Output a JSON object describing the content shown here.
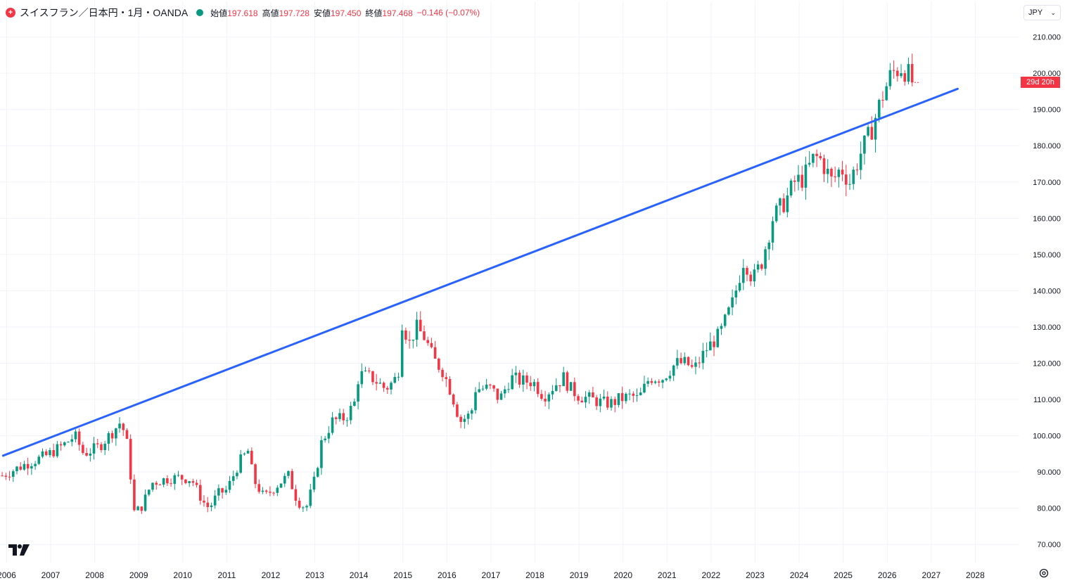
{
  "header": {
    "title": "スイスフラン／日本円・1月・OANDA",
    "open_label": "始値",
    "open_value": "197.618",
    "high_label": "高値",
    "high_value": "197.728",
    "low_label": "安値",
    "low_value": "197.450",
    "close_label": "終値",
    "close_value": "197.468",
    "change": "−0.146 (−0.07%)"
  },
  "currency": {
    "label": "JPY"
  },
  "countdown": {
    "label": "29d 20h"
  },
  "icons": {
    "symbol": "cross-circle-icon",
    "status": "market-status-icon",
    "dropdown": "chevron-down-icon",
    "logo": "tradingview-logo-icon",
    "settings": "gear-icon"
  },
  "colors": {
    "up": "#089981",
    "down": "#f23645",
    "trendline": "#2962ff",
    "grid": "#f0f3fa"
  },
  "chart_data": {
    "type": "candlestick",
    "x_tick_labels": [
      "2006",
      "2007",
      "2008",
      "2009",
      "2010",
      "2011",
      "2012",
      "2013",
      "2014",
      "2015",
      "2016",
      "2017",
      "2018",
      "2019",
      "2020",
      "2021",
      "2022",
      "2023",
      "2024",
      "2025",
      "2026",
      "2027",
      "2028"
    ],
    "y_tick_labels": [
      "210.000",
      "200.000",
      "190.000",
      "180.000",
      "170.000",
      "160.000",
      "150.000",
      "140.000",
      "130.000",
      "120.000",
      "110.000",
      "100.000",
      "90.000",
      "80.000",
      "70.000"
    ],
    "ylim": [
      65,
      214
    ],
    "xlim": [
      2005.85,
      2029.0
    ],
    "grid": true,
    "anchors": [
      [
        2005.9,
        89
      ],
      [
        2006.4,
        92
      ],
      [
        2006.9,
        94.5
      ],
      [
        2007.3,
        97.5
      ],
      [
        2007.55,
        100
      ],
      [
        2007.75,
        95
      ],
      [
        2008.1,
        97
      ],
      [
        2008.4,
        101
      ],
      [
        2008.6,
        104
      ],
      [
        2008.75,
        97
      ],
      [
        2008.9,
        79
      ],
      [
        2009.05,
        80
      ],
      [
        2009.3,
        87
      ],
      [
        2009.6,
        88
      ],
      [
        2009.9,
        88.5
      ],
      [
        2010.2,
        88
      ],
      [
        2010.45,
        82
      ],
      [
        2010.6,
        80
      ],
      [
        2010.8,
        84
      ],
      [
        2011.0,
        85
      ],
      [
        2011.3,
        93
      ],
      [
        2011.5,
        96
      ],
      [
        2011.6,
        88
      ],
      [
        2011.85,
        83
      ],
      [
        2012.2,
        87
      ],
      [
        2012.4,
        89
      ],
      [
        2012.6,
        82
      ],
      [
        2012.8,
        80
      ],
      [
        2013.0,
        88
      ],
      [
        2013.15,
        98
      ],
      [
        2013.4,
        104
      ],
      [
        2013.7,
        105
      ],
      [
        2013.9,
        109
      ],
      [
        2014.0,
        117
      ],
      [
        2014.3,
        116
      ],
      [
        2014.6,
        113
      ],
      [
        2014.8,
        115
      ],
      [
        2014.95,
        120
      ],
      [
        2015.0,
        137
      ],
      [
        2015.1,
        124
      ],
      [
        2015.3,
        130
      ],
      [
        2015.5,
        127
      ],
      [
        2015.7,
        121
      ],
      [
        2015.9,
        118
      ],
      [
        2016.1,
        112
      ],
      [
        2016.3,
        104
      ],
      [
        2016.55,
        106
      ],
      [
        2016.65,
        113
      ],
      [
        2017.0,
        113
      ],
      [
        2017.2,
        110
      ],
      [
        2017.45,
        116
      ],
      [
        2017.7,
        115
      ],
      [
        2017.95,
        115
      ],
      [
        2018.2,
        111
      ],
      [
        2018.45,
        114
      ],
      [
        2018.65,
        116
      ],
      [
        2018.8,
        113
      ],
      [
        2019.0,
        111
      ],
      [
        2019.3,
        110
      ],
      [
        2019.55,
        109
      ],
      [
        2019.75,
        109
      ],
      [
        2019.9,
        110
      ],
      [
        2020.2,
        111
      ],
      [
        2020.35,
        110
      ],
      [
        2020.6,
        116
      ],
      [
        2020.9,
        116
      ],
      [
        2021.2,
        120
      ],
      [
        2021.45,
        120
      ],
      [
        2021.6,
        118
      ],
      [
        2021.9,
        124
      ],
      [
        2022.2,
        128
      ],
      [
        2022.5,
        137
      ],
      [
        2022.75,
        149
      ],
      [
        2022.95,
        143
      ],
      [
        2023.15,
        148
      ],
      [
        2023.4,
        160
      ],
      [
        2023.7,
        165
      ],
      [
        2023.9,
        170
      ],
      [
        2024.1,
        171
      ],
      [
        2024.35,
        177
      ],
      [
        2024.5,
        176
      ],
      [
        2024.75,
        170
      ],
      [
        2024.95,
        174
      ],
      [
        2025.15,
        170
      ],
      [
        2025.4,
        178
      ],
      [
        2025.6,
        183
      ],
      [
        2025.9,
        194
      ],
      [
        2026.1,
        200
      ],
      [
        2026.35,
        202
      ],
      [
        2026.5,
        199
      ],
      [
        2026.58,
        197.5
      ]
    ],
    "trendline": {
      "from": [
        2005.92,
        94.5
      ],
      "to": [
        2027.6,
        195.7
      ],
      "color": "#2962ff"
    },
    "last_close": 197.468
  }
}
